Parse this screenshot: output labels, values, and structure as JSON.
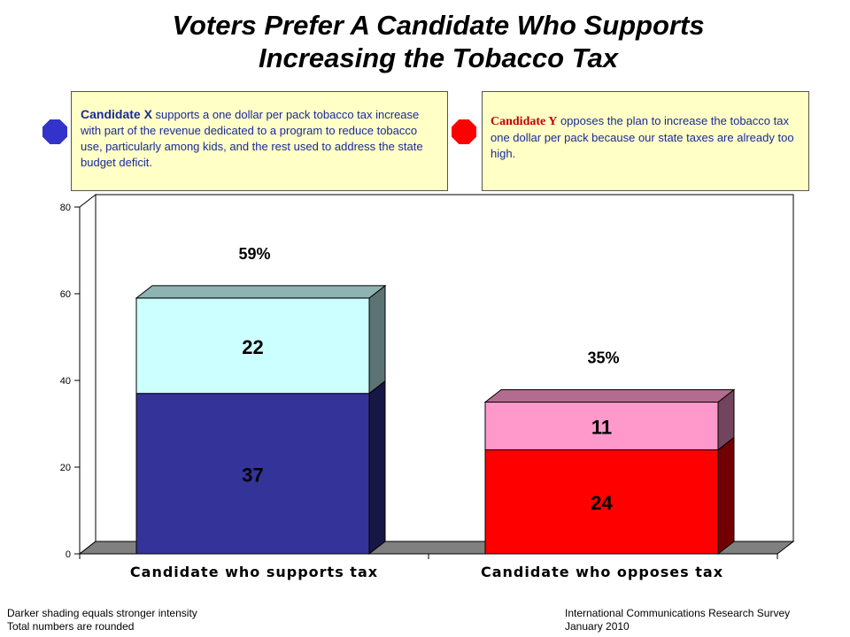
{
  "title_line1": "Voters Prefer A Candidate Who Supports",
  "title_line2": "Increasing the Tobacco Tax",
  "candidate_x": {
    "name": "Candidate X",
    "text": "supports a one dollar per pack tobacco tax increase with part of the revenue dedicated to a program to reduce tobacco use, particularly among kids, and the rest used to address the state budget deficit.",
    "icon": "blue-octagon-icon",
    "color": "#3333cc"
  },
  "candidate_y": {
    "name": "Candidate Y",
    "text": "opposes the plan to increase the tobacco tax one dollar per pack because our state taxes are already too high.",
    "icon": "red-stop-octagon-icon",
    "color": "#ff0000"
  },
  "chart_data": {
    "type": "bar",
    "stacked": true,
    "three_d": true,
    "categories": [
      "Candidate who supports tax",
      "Candidate who opposes tax"
    ],
    "series": [
      {
        "name": "",
        "values": [
          37,
          24
        ],
        "colors": [
          "#333399",
          "#ff0000"
        ]
      },
      {
        "name": "",
        "values": [
          22,
          11
        ],
        "colors": [
          "#ccffff",
          "#ff99cc"
        ]
      }
    ],
    "totals": [
      "59%",
      "35%"
    ],
    "ylim": [
      0,
      80
    ],
    "yticks": [
      "0",
      "20",
      "40",
      "60",
      "80"
    ],
    "grid": false
  },
  "footer": {
    "left_line1": "Darker shading equals stronger intensity",
    "left_line2": "Total numbers are rounded",
    "right_line1": "International Communications Research Survey",
    "right_line2": "January 2010"
  }
}
